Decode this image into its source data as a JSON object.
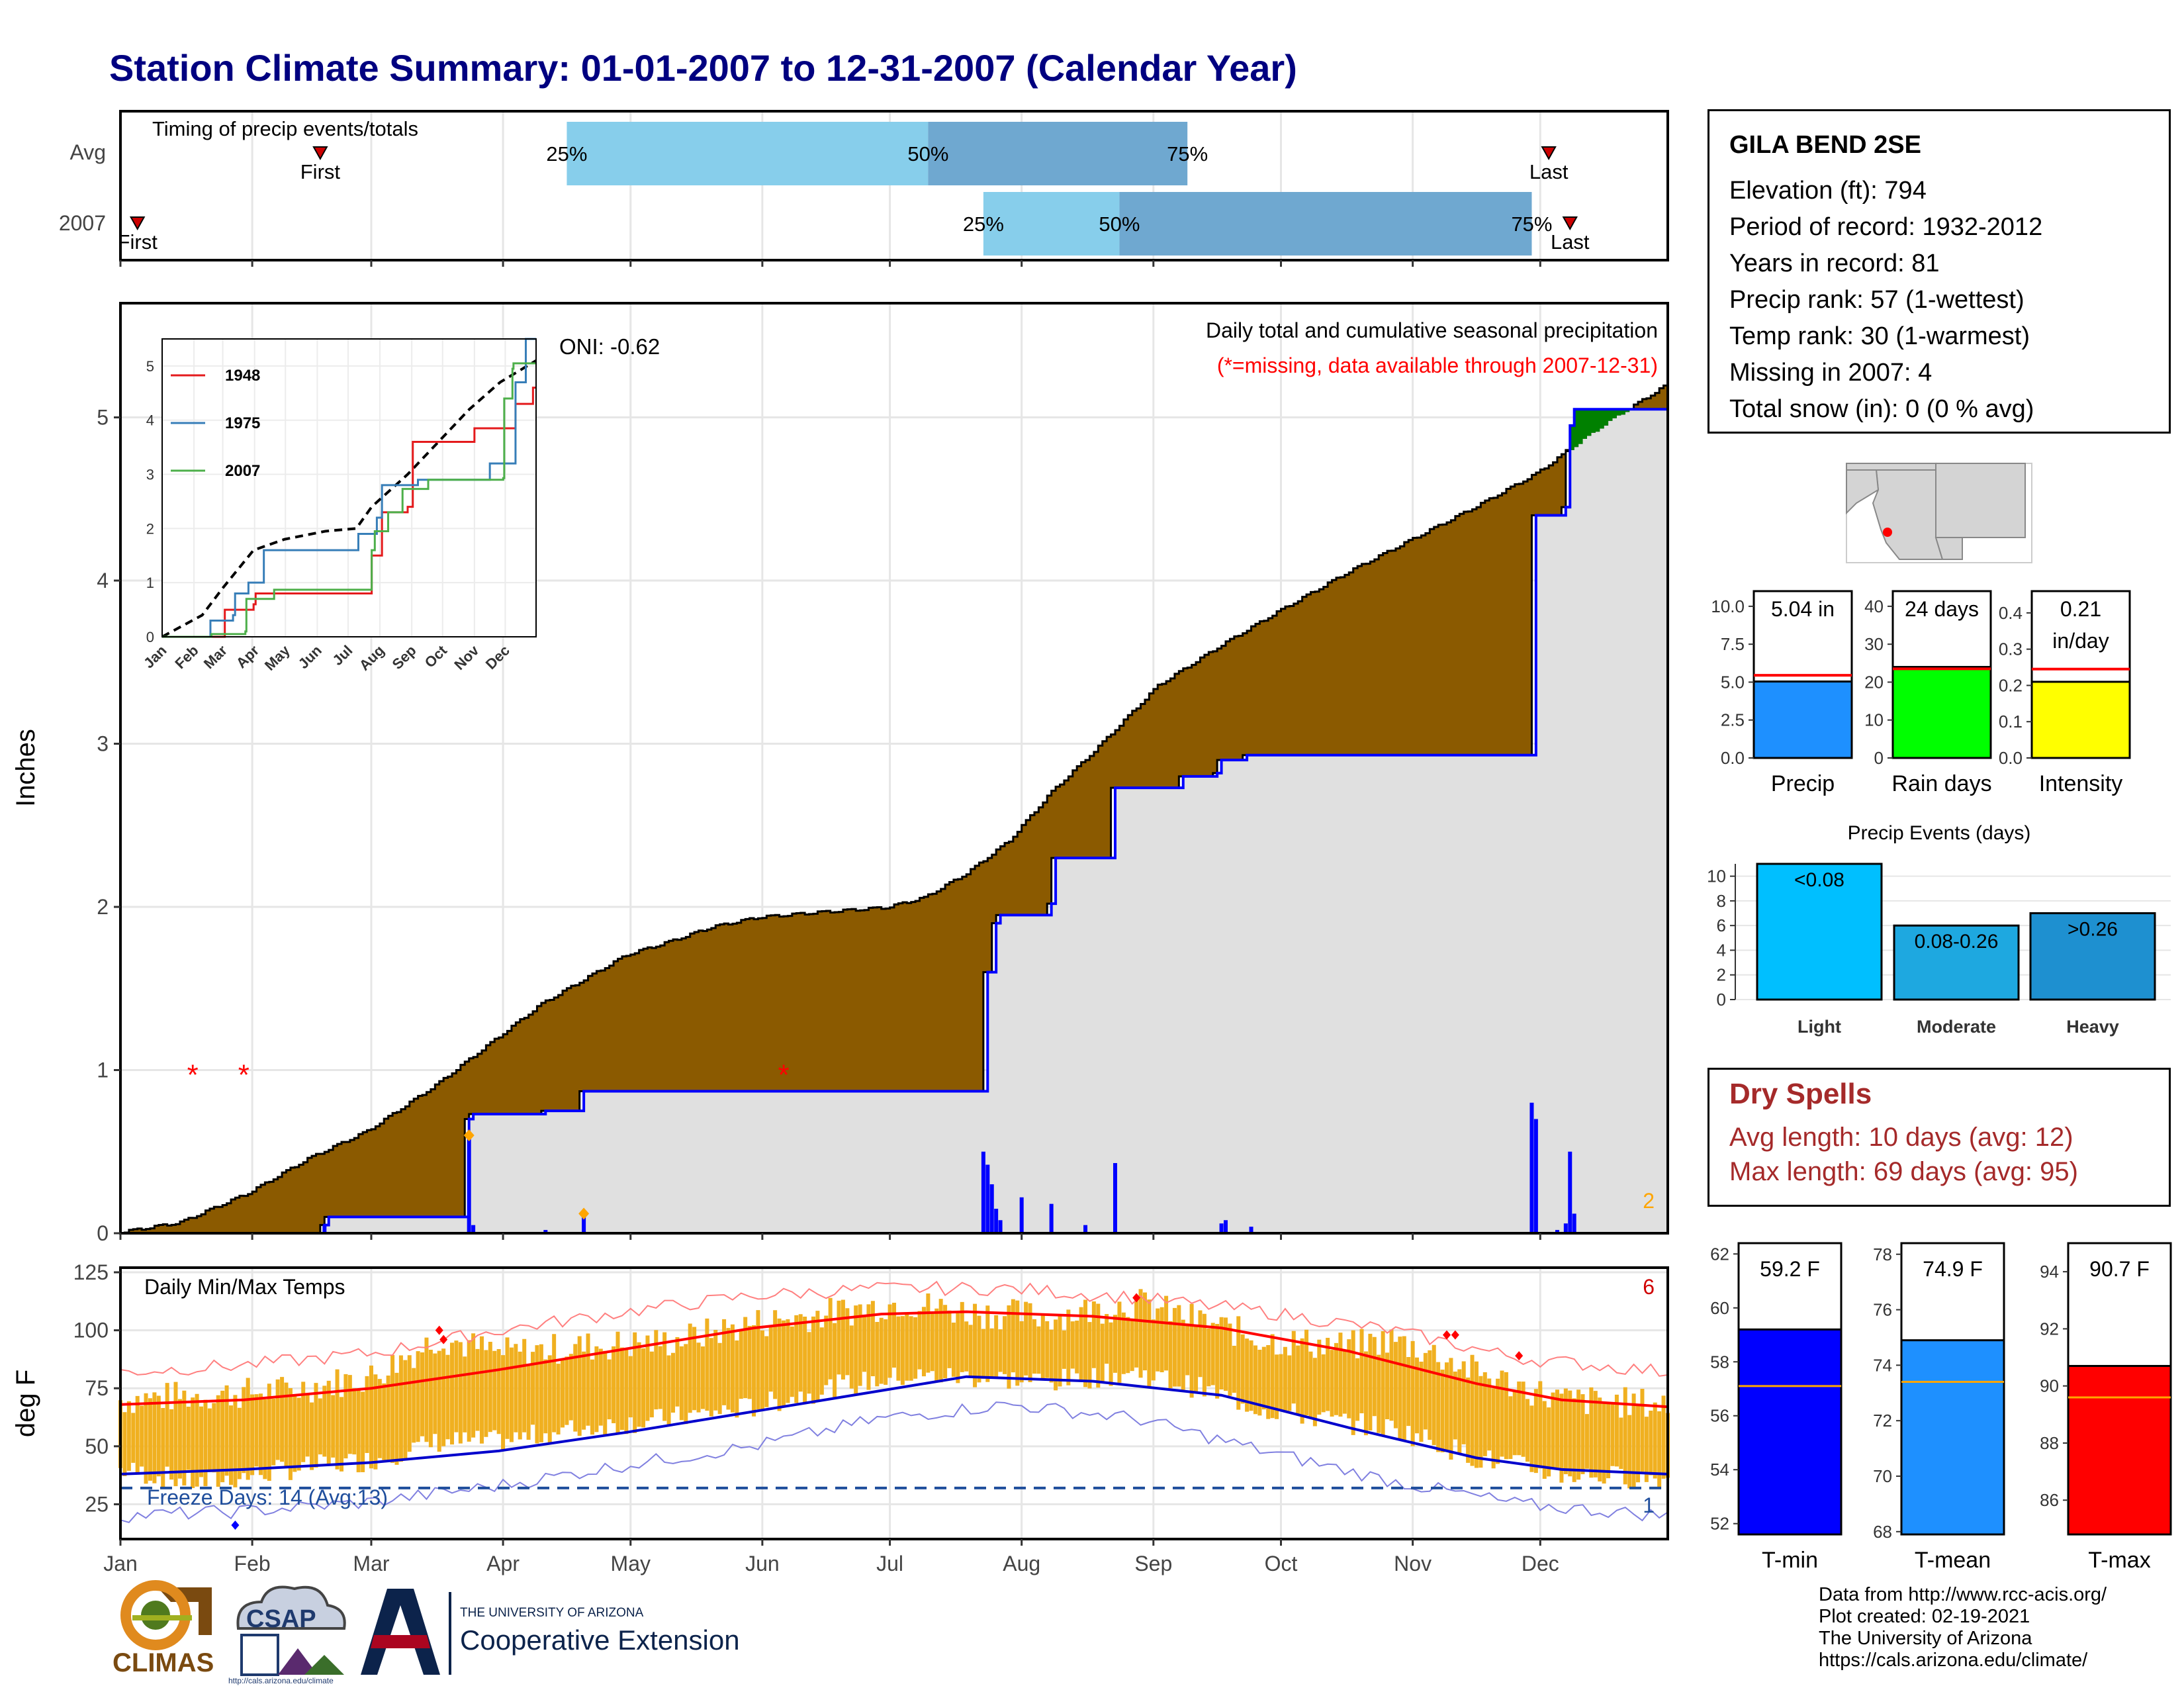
{
  "title": "Station Climate Summary: 01-01-2007 to 12-31-2007 (Calendar Year)",
  "station": {
    "name": "GILA BEND 2SE",
    "lines": [
      "Elevation (ft): 794",
      "Period of record: 1932-2012",
      "Years in record: 81",
      "Precip rank: 57 (1-wettest)",
      "Temp rank: 30 (1-warmest)",
      "Missing in 2007: 4",
      "Total snow (in): 0 (0 % avg)"
    ]
  },
  "dry_spells": {
    "heading": "Dry Spells",
    "lines": [
      "Avg length: 10 days (avg: 12)",
      "Max length: 69 days (avg: 95)"
    ]
  },
  "footer": {
    "lines": [
      "Data from http://www.rcc-acis.org/",
      "Plot created: 02-19-2021",
      "The University of Arizona",
      "https://cals.arizona.edu/climate/"
    ]
  },
  "logos": {
    "climas": "CLIMAS",
    "csap": "CSAP",
    "csap_url": "http://cals.arizona.edu/climate",
    "ua_small": "THE UNIVERSITY OF ARIZONA",
    "ua_large": "Cooperative Extension"
  },
  "colors": {
    "brown": "#8b5a00",
    "grey_fill": "#e0e0e0",
    "blue_line": "#0000ff",
    "green_fill": "#008000",
    "orange_bars": "#f0b020",
    "red": "#ff0000",
    "light_blue": "#87ceeb",
    "mid_blue": "#6fa8d0",
    "title_navy": "#000080"
  },
  "chart_data": [
    {
      "id": "timing",
      "type": "bar",
      "title": "Timing of precip events/totals",
      "categories": [
        "Avg",
        "2007"
      ],
      "x_range": [
        1,
        365
      ],
      "rows": [
        {
          "label": "Avg",
          "first_day": 48,
          "p25_day": 106,
          "p50_day": 191,
          "p75_day": 252,
          "last_day": 337
        },
        {
          "label": "2007",
          "first_day": 5,
          "p25_day": 204,
          "p50_day": 236,
          "p75_day": 333,
          "last_day": 342
        }
      ],
      "marker_labels": {
        "first": "First",
        "last": "Last",
        "p25": "25%",
        "p50": "50%",
        "p75": "75%"
      }
    },
    {
      "id": "precip",
      "type": "area",
      "title": "Daily total and cumulative seasonal precipitation",
      "subtitle": "(*=missing, data available through 2007-12-31)",
      "ylabel": "Inches",
      "ylim": [
        0,
        5.7
      ],
      "yticks": [
        0,
        1,
        2,
        3,
        4,
        5
      ],
      "annotation": "ONI: -0.62",
      "corner_count": "2",
      "avg_cumulative": [
        [
          1,
          0
        ],
        [
          15,
          0.06
        ],
        [
          31,
          0.24
        ],
        [
          45,
          0.45
        ],
        [
          59,
          0.62
        ],
        [
          75,
          0.9
        ],
        [
          90,
          1.2
        ],
        [
          100,
          1.4
        ],
        [
          110,
          1.55
        ],
        [
          120,
          1.7
        ],
        [
          130,
          1.78
        ],
        [
          140,
          1.87
        ],
        [
          151,
          1.93
        ],
        [
          165,
          1.96
        ],
        [
          181,
          1.99
        ],
        [
          190,
          2.05
        ],
        [
          200,
          2.2
        ],
        [
          210,
          2.4
        ],
        [
          220,
          2.7
        ],
        [
          230,
          2.95
        ],
        [
          245,
          3.35
        ],
        [
          260,
          3.6
        ],
        [
          273,
          3.8
        ],
        [
          290,
          4.05
        ],
        [
          305,
          4.25
        ],
        [
          320,
          4.45
        ],
        [
          334,
          4.65
        ],
        [
          350,
          4.95
        ],
        [
          365,
          5.2
        ]
      ],
      "obs_cumulative": [
        [
          1,
          0
        ],
        [
          48,
          0
        ],
        [
          49,
          0.05
        ],
        [
          50,
          0.1
        ],
        [
          82,
          0.1
        ],
        [
          83,
          0.7
        ],
        [
          84,
          0.73
        ],
        [
          100,
          0.73
        ],
        [
          101,
          0.75
        ],
        [
          109,
          0.75
        ],
        [
          110,
          0.87
        ],
        [
          204,
          0.87
        ],
        [
          205,
          1.6
        ],
        [
          207,
          1.9
        ],
        [
          208,
          1.95
        ],
        [
          220,
          2.02
        ],
        [
          221,
          2.3
        ],
        [
          234,
          2.3
        ],
        [
          235,
          2.73
        ],
        [
          250,
          2.73
        ],
        [
          251,
          2.8
        ],
        [
          259,
          2.82
        ],
        [
          260,
          2.9
        ],
        [
          266,
          2.93
        ],
        [
          333,
          2.93
        ],
        [
          334,
          4.4
        ],
        [
          341,
          4.45
        ],
        [
          342,
          4.95
        ],
        [
          343,
          5.05
        ],
        [
          365,
          5.05
        ]
      ],
      "daily_bars": [
        [
          49,
          0.05
        ],
        [
          83,
          0.6
        ],
        [
          84,
          0.05
        ],
        [
          101,
          0.02
        ],
        [
          110,
          0.12
        ],
        [
          204,
          0.5
        ],
        [
          205,
          0.42
        ],
        [
          206,
          0.3
        ],
        [
          207,
          0.15
        ],
        [
          208,
          0.08
        ],
        [
          213,
          0.22
        ],
        [
          220,
          0.18
        ],
        [
          228,
          0.05
        ],
        [
          235,
          0.43
        ],
        [
          260,
          0.06
        ],
        [
          261,
          0.08
        ],
        [
          267,
          0.04
        ],
        [
          333,
          0.8
        ],
        [
          334,
          0.7
        ],
        [
          339,
          0.02
        ],
        [
          341,
          0.06
        ],
        [
          342,
          0.5
        ],
        [
          343,
          0.12
        ]
      ],
      "missing_days": [
        18,
        30,
        157
      ],
      "inset": {
        "years": [
          "1948",
          "1975",
          "2007"
        ],
        "series_colors": [
          "#e41a1c",
          "#377eb8",
          "#4daf4a"
        ],
        "ylim": [
          0,
          5.5
        ],
        "yticks": [
          0,
          1,
          2,
          3,
          4,
          5
        ],
        "months": [
          "Jan",
          "Feb",
          "Mar",
          "Apr",
          "May",
          "Jun",
          "Jul",
          "Aug",
          "Sep",
          "Oct",
          "Nov",
          "Dec"
        ],
        "avg": [
          [
            1,
            0
          ],
          [
            40,
            0.4
          ],
          [
            60,
            0.9
          ],
          [
            90,
            1.6
          ],
          [
            120,
            1.8
          ],
          [
            160,
            1.95
          ],
          [
            190,
            2
          ],
          [
            205,
            2.4
          ],
          [
            240,
            3
          ],
          [
            270,
            3.6
          ],
          [
            300,
            4.2
          ],
          [
            330,
            4.7
          ],
          [
            365,
            5.1
          ]
        ],
        "s1948": [
          [
            1,
            0
          ],
          [
            60,
            0
          ],
          [
            62,
            0.5
          ],
          [
            90,
            0.6
          ],
          [
            92,
            0.8
          ],
          [
            200,
            0.8
          ],
          [
            205,
            1.5
          ],
          [
            215,
            2.3
          ],
          [
            240,
            2.4
          ],
          [
            245,
            3.6
          ],
          [
            300,
            3.6
          ],
          [
            305,
            3.85
          ],
          [
            340,
            3.85
          ],
          [
            345,
            4.3
          ],
          [
            360,
            4.3
          ],
          [
            362,
            4.6
          ],
          [
            365,
            4.6
          ]
        ],
        "s1975": [
          [
            1,
            0
          ],
          [
            45,
            0
          ],
          [
            48,
            0.3
          ],
          [
            70,
            0.4
          ],
          [
            72,
            0.8
          ],
          [
            85,
            1.0
          ],
          [
            100,
            1.6
          ],
          [
            190,
            1.6
          ],
          [
            192,
            1.9
          ],
          [
            210,
            2.2
          ],
          [
            215,
            2.8
          ],
          [
            250,
            2.9
          ],
          [
            300,
            2.9
          ],
          [
            320,
            3.2
          ],
          [
            340,
            3.2
          ],
          [
            345,
            4.7
          ],
          [
            350,
            4.7
          ],
          [
            355,
            5.5
          ],
          [
            365,
            5.5
          ]
        ],
        "s2007": [
          [
            1,
            0
          ],
          [
            48,
            0
          ],
          [
            49,
            0.05
          ],
          [
            82,
            0.1
          ],
          [
            83,
            0.7
          ],
          [
            110,
            0.87
          ],
          [
            204,
            0.87
          ],
          [
            205,
            1.6
          ],
          [
            208,
            1.95
          ],
          [
            221,
            2.3
          ],
          [
            234,
            2.3
          ],
          [
            235,
            2.73
          ],
          [
            260,
            2.9
          ],
          [
            333,
            2.93
          ],
          [
            334,
            4.4
          ],
          [
            342,
            4.95
          ],
          [
            343,
            5.05
          ],
          [
            365,
            5.05
          ]
        ]
      }
    },
    {
      "id": "temps",
      "type": "line",
      "title": "Daily Min/Max Temps",
      "ylabel": "deg F",
      "ylim": [
        10,
        127
      ],
      "yticks": [
        25,
        50,
        75,
        100,
        125
      ],
      "freeze_label": "Freeze Days: 14 (Avg:13)",
      "freeze_line": 32,
      "count_top": "6",
      "count_bottom": "1",
      "months": [
        "Jan",
        "Feb",
        "Mar",
        "Apr",
        "May",
        "Jun",
        "Jul",
        "Aug",
        "Sep",
        "Oct",
        "Nov",
        "Dec"
      ],
      "normal_max": [
        [
          1,
          68
        ],
        [
          30,
          70
        ],
        [
          60,
          75
        ],
        [
          90,
          83
        ],
        [
          120,
          92
        ],
        [
          150,
          101
        ],
        [
          180,
          107
        ],
        [
          200,
          108
        ],
        [
          230,
          106
        ],
        [
          260,
          101
        ],
        [
          290,
          91
        ],
        [
          320,
          77
        ],
        [
          340,
          70
        ],
        [
          365,
          67
        ]
      ],
      "normal_min": [
        [
          1,
          38
        ],
        [
          30,
          40
        ],
        [
          60,
          43
        ],
        [
          90,
          48
        ],
        [
          120,
          56
        ],
        [
          150,
          65
        ],
        [
          180,
          74
        ],
        [
          200,
          80
        ],
        [
          230,
          78
        ],
        [
          260,
          72
        ],
        [
          290,
          58
        ],
        [
          320,
          45
        ],
        [
          340,
          40
        ],
        [
          365,
          38
        ]
      ],
      "record_max": [
        [
          1,
          82
        ],
        [
          30,
          85
        ],
        [
          60,
          90
        ],
        [
          90,
          100
        ],
        [
          120,
          108
        ],
        [
          150,
          115
        ],
        [
          180,
          118
        ],
        [
          210,
          118
        ],
        [
          240,
          114
        ],
        [
          270,
          108
        ],
        [
          300,
          100
        ],
        [
          330,
          88
        ],
        [
          365,
          82
        ]
      ],
      "record_min": [
        [
          1,
          20
        ],
        [
          30,
          22
        ],
        [
          60,
          26
        ],
        [
          90,
          33
        ],
        [
          120,
          42
        ],
        [
          150,
          50
        ],
        [
          180,
          62
        ],
        [
          210,
          68
        ],
        [
          240,
          62
        ],
        [
          270,
          48
        ],
        [
          300,
          35
        ],
        [
          330,
          25
        ],
        [
          365,
          20
        ]
      ],
      "obs_max_anchors": [
        [
          1,
          70
        ],
        [
          20,
          72
        ],
        [
          40,
          74
        ],
        [
          60,
          80
        ],
        [
          76,
          97
        ],
        [
          90,
          90
        ],
        [
          110,
          93
        ],
        [
          130,
          95
        ],
        [
          150,
          103
        ],
        [
          170,
          108
        ],
        [
          185,
          112
        ],
        [
          200,
          108
        ],
        [
          220,
          106
        ],
        [
          240,
          112
        ],
        [
          255,
          104
        ],
        [
          270,
          96
        ],
        [
          290,
          93
        ],
        [
          300,
          96
        ],
        [
          310,
          90
        ],
        [
          320,
          82
        ],
        [
          340,
          70
        ],
        [
          365,
          68
        ]
      ],
      "obs_min_anchors": [
        [
          1,
          40
        ],
        [
          20,
          34
        ],
        [
          40,
          40
        ],
        [
          60,
          44
        ],
        [
          76,
          52
        ],
        [
          90,
          52
        ],
        [
          110,
          58
        ],
        [
          130,
          62
        ],
        [
          150,
          67
        ],
        [
          170,
          76
        ],
        [
          185,
          80
        ],
        [
          200,
          80
        ],
        [
          220,
          78
        ],
        [
          240,
          82
        ],
        [
          255,
          75
        ],
        [
          270,
          66
        ],
        [
          290,
          60
        ],
        [
          300,
          58
        ],
        [
          310,
          52
        ],
        [
          320,
          45
        ],
        [
          340,
          38
        ],
        [
          365,
          36
        ]
      ]
    },
    {
      "id": "season_precip",
      "type": "bar",
      "categories": [
        "Precip",
        "Rain days",
        "Intensity"
      ],
      "values": [
        5.04,
        24,
        0.21
      ],
      "averages": [
        5.45,
        23.5,
        0.245
      ],
      "value_labels": [
        "5.04 in",
        "24 days",
        "0.21\nin/day"
      ],
      "ylims": [
        [
          0,
          11
        ],
        [
          0,
          44
        ],
        [
          0,
          0.46
        ]
      ],
      "yticks": [
        [
          "0.0",
          "2.5",
          "5.0",
          "7.5",
          "10.0"
        ],
        [
          "0",
          "10",
          "20",
          "30",
          "40"
        ],
        [
          "0.0",
          "0.1",
          "0.2",
          "0.3",
          "0.4"
        ]
      ],
      "colors": [
        "#1e90ff",
        "#00ff00",
        "#ffff00"
      ]
    },
    {
      "id": "precip_events",
      "type": "bar",
      "title": "Precip Events (days)",
      "categories": [
        "Light",
        "Moderate",
        "Heavy"
      ],
      "values": [
        11,
        6,
        7
      ],
      "value_labels": [
        "<0.08",
        "0.08-0.26",
        ">0.26"
      ],
      "ylim": [
        0,
        11
      ],
      "yticks": [
        0,
        2,
        4,
        6,
        8,
        10
      ],
      "colors": [
        "#00bfff",
        "#1ea8e0",
        "#1e90d0"
      ]
    },
    {
      "id": "season_temps",
      "type": "bar",
      "categories": [
        "T-min",
        "T-mean",
        "T-max"
      ],
      "values": [
        59.2,
        74.9,
        90.7
      ],
      "averages": [
        57.1,
        73.4,
        89.6
      ],
      "value_labels": [
        "59.2 F",
        "74.9 F",
        "90.7 F"
      ],
      "ylims": [
        [
          51.6,
          62.4
        ],
        [
          67.9,
          78.4
        ],
        [
          84.8,
          95.0
        ]
      ],
      "yticks": [
        [
          52,
          54,
          56,
          58,
          60,
          62
        ],
        [
          68,
          70,
          72,
          74,
          76,
          78
        ],
        [
          86,
          88,
          90,
          92,
          94
        ]
      ],
      "colors": [
        "#0000ff",
        "#1e90ff",
        "#ff0000"
      ]
    }
  ]
}
